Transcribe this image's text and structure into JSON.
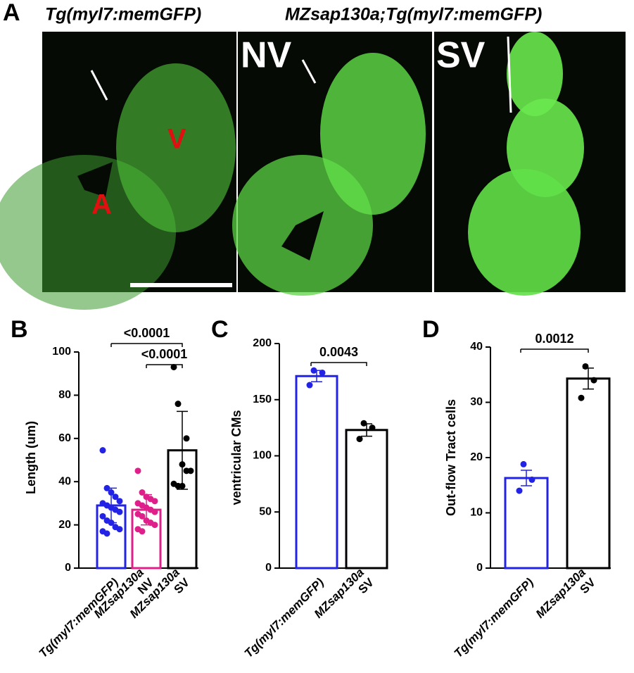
{
  "panel_a": {
    "panel": "A",
    "title_left": "Tg(myl7:memGFP)",
    "title_right": "MZsap130a;Tg(myl7:memGFP)",
    "label_atrium": "A",
    "label_ventricle": "V",
    "label_nv": "NV",
    "label_sv": "SV"
  },
  "chart_data": [
    {
      "type": "bar",
      "panel": "B",
      "ylabel": "Length (um)",
      "categories": [
        [
          "Tg(myl7:memGFP)"
        ],
        [
          "MZsap130a",
          "NV"
        ],
        [
          "MZsap130a",
          "SV"
        ]
      ],
      "colors": [
        "#2323e6",
        "#e0208a",
        "#000000"
      ],
      "values": [
        29,
        27,
        54.5
      ],
      "errors": [
        8,
        7,
        18
      ],
      "points": [
        [
          54.5,
          37,
          35,
          33,
          31,
          30,
          29,
          28,
          27,
          26,
          24,
          22,
          21,
          19,
          18,
          17,
          16
        ],
        [
          45,
          35,
          33,
          32,
          31,
          30,
          29,
          28,
          27,
          26,
          25,
          24,
          22,
          21,
          20,
          18,
          17
        ],
        [
          93,
          76,
          48,
          45,
          45,
          39,
          38,
          38,
          60
        ]
      ],
      "comparisons": [
        {
          "from": 0,
          "to": 2,
          "label": "<0.0001"
        },
        {
          "from": 1,
          "to": 2,
          "label": "<0.0001"
        }
      ],
      "ylim": [
        0,
        100
      ],
      "yticks": [
        0,
        20,
        40,
        60,
        80,
        100
      ]
    },
    {
      "type": "bar",
      "panel": "C",
      "ylabel": "ventricular CMs",
      "categories": [
        [
          "Tg(myl7:memGFP)"
        ],
        [
          "MZsap130a",
          "SV"
        ]
      ],
      "colors": [
        "#2323e6",
        "#000000"
      ],
      "values": [
        171,
        123
      ],
      "errors": [
        5,
        5.5
      ],
      "points": [
        [
          176,
          174,
          163
        ],
        [
          129,
          125,
          115
        ]
      ],
      "comparisons": [
        {
          "from": 0,
          "to": 1,
          "label": "0.0043"
        }
      ],
      "ylim": [
        0,
        200
      ],
      "yticks": [
        0,
        50,
        100,
        150,
        200
      ]
    },
    {
      "type": "bar",
      "panel": "D",
      "ylabel": "Out-flow Tract cells",
      "categories": [
        [
          "Tg(myl7:memGFP)"
        ],
        [
          "MZsap130a",
          "SV"
        ]
      ],
      "colors": [
        "#2323e6",
        "#000000"
      ],
      "values": [
        16.3,
        34.3
      ],
      "errors": [
        1.4,
        1.9
      ],
      "points": [
        [
          18.8,
          16,
          14
        ],
        [
          36.5,
          34,
          30.8
        ]
      ],
      "comparisons": [
        {
          "from": 0,
          "to": 1,
          "label": "0.0012"
        }
      ],
      "ylim": [
        0,
        40
      ],
      "yticks": [
        0,
        10,
        20,
        30,
        40
      ]
    }
  ]
}
